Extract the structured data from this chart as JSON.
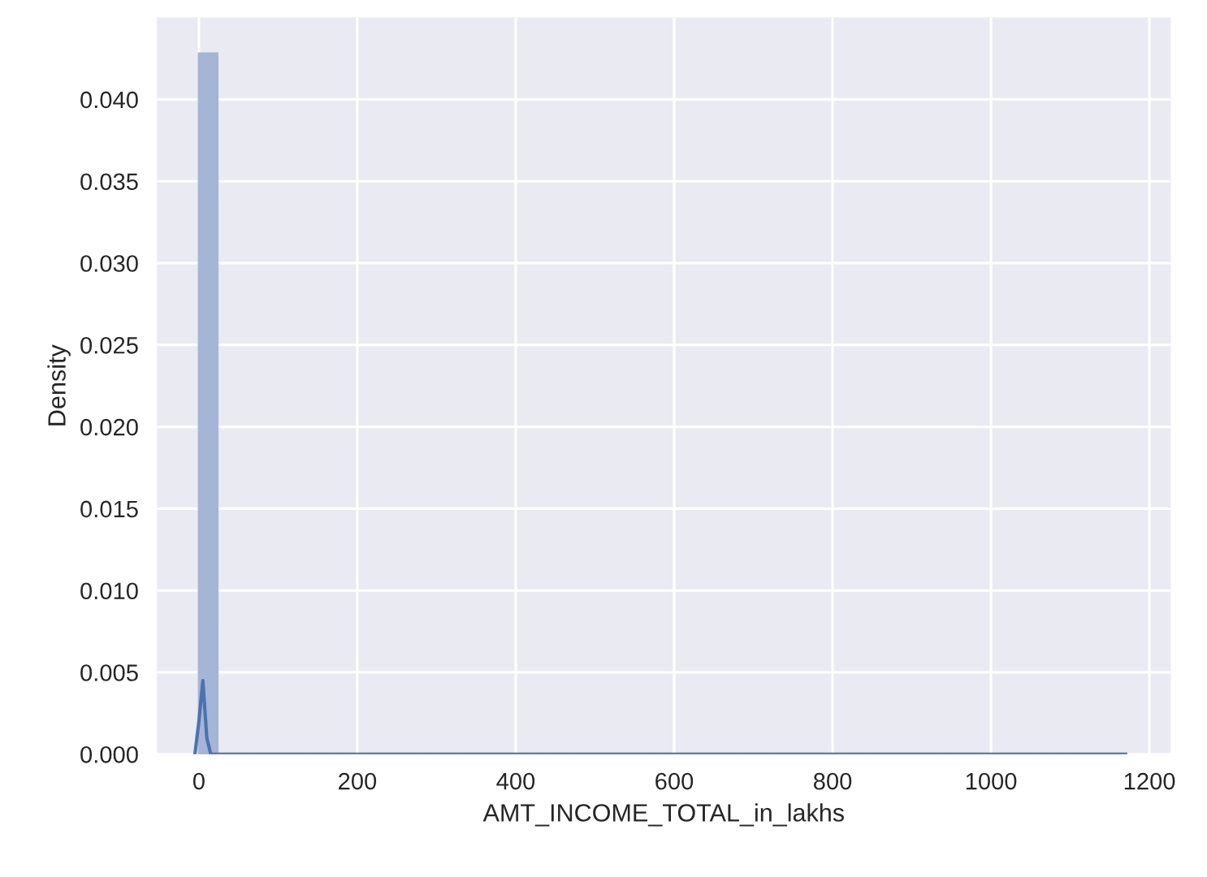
{
  "chart_data": {
    "type": "histogram",
    "xlabel": "AMT_INCOME_TOTAL_in_lakhs",
    "ylabel": "Density",
    "bins": [
      0,
      23.4,
      46.8,
      70.2,
      93.6,
      117,
      140.4,
      163.8,
      187.2,
      210.6,
      234,
      257.4,
      280.8,
      304.2,
      327.6,
      351,
      374.4,
      397.8,
      421.2,
      444.6,
      468,
      491.4,
      514.8,
      538.2,
      561.6,
      585,
      608.4,
      631.8,
      655.2,
      678.6,
      702,
      725.4,
      748.8,
      772.2,
      795.6,
      819,
      842.4,
      865.8,
      889.2,
      912.6,
      936,
      959.4,
      982.8,
      1006.2,
      1029.6,
      1053,
      1076.4,
      1099.8,
      1123.2,
      1146.6,
      1170
    ],
    "values": [
      0.0428,
      0,
      0,
      0,
      0,
      0,
      0,
      0,
      0,
      0,
      0,
      0,
      0,
      0,
      0,
      0,
      0,
      0,
      0,
      0,
      0,
      0,
      0,
      0,
      0,
      0,
      0,
      0,
      0,
      0,
      0,
      0,
      0,
      0,
      0,
      0,
      0,
      0,
      0,
      0,
      0,
      0,
      0,
      0,
      0,
      0,
      0,
      0,
      0,
      0
    ],
    "color": "#a5b5d6",
    "series": [
      {
        "type": "line",
        "color": "#4c72b0",
        "x": [
          -5,
          0,
          5,
          10,
          15,
          1170
        ],
        "values": [
          0,
          0.002,
          0.0045,
          0.001,
          0,
          0
        ]
      }
    ],
    "xlim": [
      -53,
      1227
    ],
    "xticks": [
      0,
      200,
      400,
      600,
      800,
      1000,
      1200
    ],
    "ylim": [
      0,
      0.045
    ],
    "yticks": [
      {
        "value": 0,
        "label": "0.000"
      },
      0.005,
      {
        "value": 0.01,
        "label": "0.010"
      },
      0.015,
      {
        "value": 0.02,
        "label": "0.020"
      },
      0.025,
      {
        "value": 0.03,
        "label": "0.030"
      },
      0.035,
      {
        "value": 0.04,
        "label": "0.040"
      }
    ],
    "grid": true
  }
}
